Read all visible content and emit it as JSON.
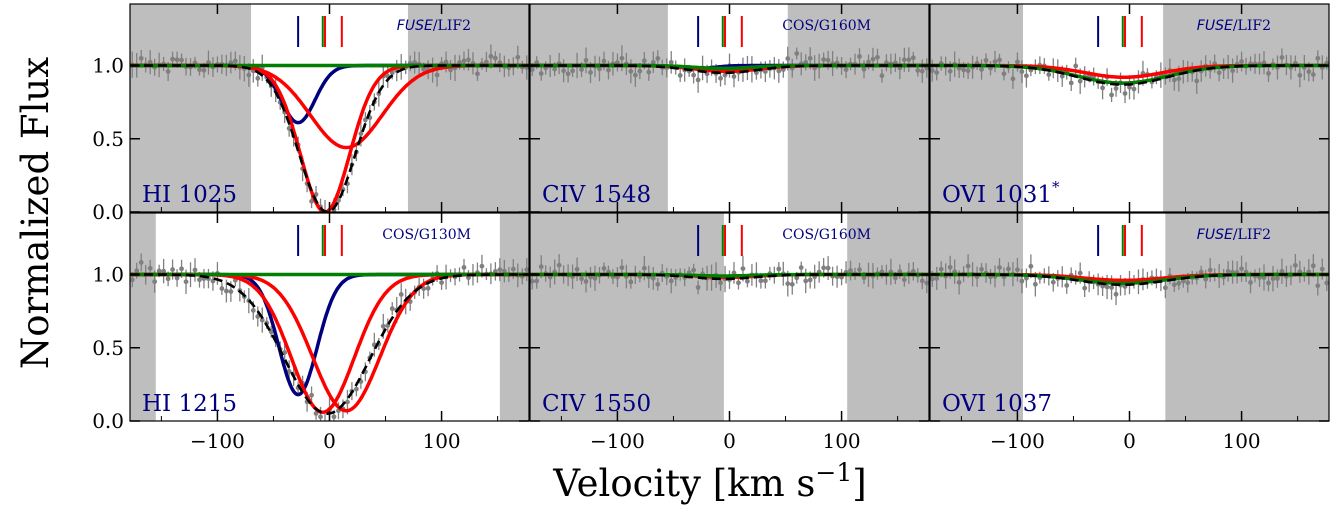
{
  "figure": {
    "ylabel": "Normalized Flux",
    "xlabel": "Velocity [km s",
    "xlabel_sup": "−1",
    "xlabel_close": "]",
    "ytick_labels": [
      "0.0",
      "0.5",
      "1.0"
    ],
    "xtick_labels": [
      "−100",
      "0",
      "100"
    ]
  },
  "colors": {
    "mask": "#bebebe",
    "data": "#808080",
    "blue_component": "#00007f",
    "red_component": "#ff0000",
    "green_component": "#007f00",
    "total_model": "#000000",
    "label_text": "#00007f"
  },
  "chart_data": {
    "type": "line",
    "x_range": [
      -178,
      178
    ],
    "y_range": [
      0,
      1.42
    ],
    "y_ticks": [
      0,
      0.5,
      1.0
    ],
    "x_ticks": [
      -100,
      0,
      100
    ],
    "component_markers": [
      {
        "velocity": -28,
        "color": "blue"
      },
      {
        "velocity": -6,
        "color": "green"
      },
      {
        "velocity": -4,
        "color": "red"
      },
      {
        "velocity": 11,
        "color": "red"
      }
    ],
    "panels": [
      {
        "label": "HI 1025",
        "instrument_prefix": "FUSE",
        "instrument_suffix": "/LIF2",
        "masked_ranges": [
          [
            -178,
            -70
          ],
          [
            70,
            178
          ]
        ],
        "components": [
          {
            "color": "blue",
            "center": -28,
            "depth": 0.39,
            "width": 15
          },
          {
            "color": "red",
            "center": -4,
            "depth": 1.0,
            "width": 22
          },
          {
            "color": "red",
            "center": 15,
            "depth": 0.56,
            "width": 32
          },
          {
            "color": "green",
            "center": -6,
            "depth": 0.0,
            "width": 20
          }
        ],
        "total_depth": 1.0,
        "total_center": -2,
        "total_width": 25
      },
      {
        "label": "CIV 1548",
        "instrument_prefix": "",
        "instrument_suffix": "COS/G160M",
        "masked_ranges": [
          [
            -178,
            -55
          ],
          [
            52,
            178
          ]
        ],
        "components": [
          {
            "color": "blue",
            "center": -28,
            "depth": 0.02,
            "width": 15
          },
          {
            "color": "red",
            "center": -2,
            "depth": 0.04,
            "width": 28
          },
          {
            "color": "green",
            "center": -6,
            "depth": 0.02,
            "width": 25
          }
        ],
        "total_depth": 0.05,
        "total_center": -5,
        "total_width": 30
      },
      {
        "label": "OVI 1031",
        "label_sup": "*",
        "instrument_prefix": "FUSE",
        "instrument_suffix": "/LIF2",
        "masked_ranges": [
          [
            -178,
            -95
          ],
          [
            30,
            178
          ]
        ],
        "components": [
          {
            "color": "red",
            "center": -5,
            "depth": 0.08,
            "width": 35
          },
          {
            "color": "green",
            "center": -6,
            "depth": 0.12,
            "width": 40
          }
        ],
        "total_depth": 0.13,
        "total_center": -6,
        "total_width": 40
      },
      {
        "label": "HI 1215",
        "instrument_prefix": "",
        "instrument_suffix": "COS/G130M",
        "masked_ranges": [
          [
            -178,
            -155
          ],
          [
            152,
            178
          ]
        ],
        "components": [
          {
            "color": "blue",
            "center": -28,
            "depth": 0.82,
            "width": 17
          },
          {
            "color": "red",
            "center": -6,
            "depth": 0.94,
            "width": 28
          },
          {
            "color": "red",
            "center": 15,
            "depth": 0.93,
            "width": 30
          },
          {
            "color": "green",
            "center": -6,
            "depth": 0.0,
            "width": 20
          }
        ],
        "total_depth": 0.95,
        "total_center": -2,
        "total_width": 38
      },
      {
        "label": "CIV 1550",
        "instrument_prefix": "",
        "instrument_suffix": "COS/G160M",
        "masked_ranges": [
          [
            -178,
            -5
          ],
          [
            105,
            178
          ]
        ],
        "components": [
          {
            "color": "red",
            "center": -2,
            "depth": 0.02,
            "width": 25
          },
          {
            "color": "green",
            "center": -6,
            "depth": 0.01,
            "width": 25
          }
        ],
        "total_depth": 0.03,
        "total_center": -5,
        "total_width": 28
      },
      {
        "label": "OVI 1037",
        "instrument_prefix": "FUSE",
        "instrument_suffix": "/LIF2",
        "masked_ranges": [
          [
            -178,
            -95
          ],
          [
            32,
            178
          ]
        ],
        "components": [
          {
            "color": "red",
            "center": -5,
            "depth": 0.04,
            "width": 35
          },
          {
            "color": "green",
            "center": -6,
            "depth": 0.06,
            "width": 38
          }
        ],
        "total_depth": 0.07,
        "total_center": -6,
        "total_width": 38
      }
    ]
  }
}
